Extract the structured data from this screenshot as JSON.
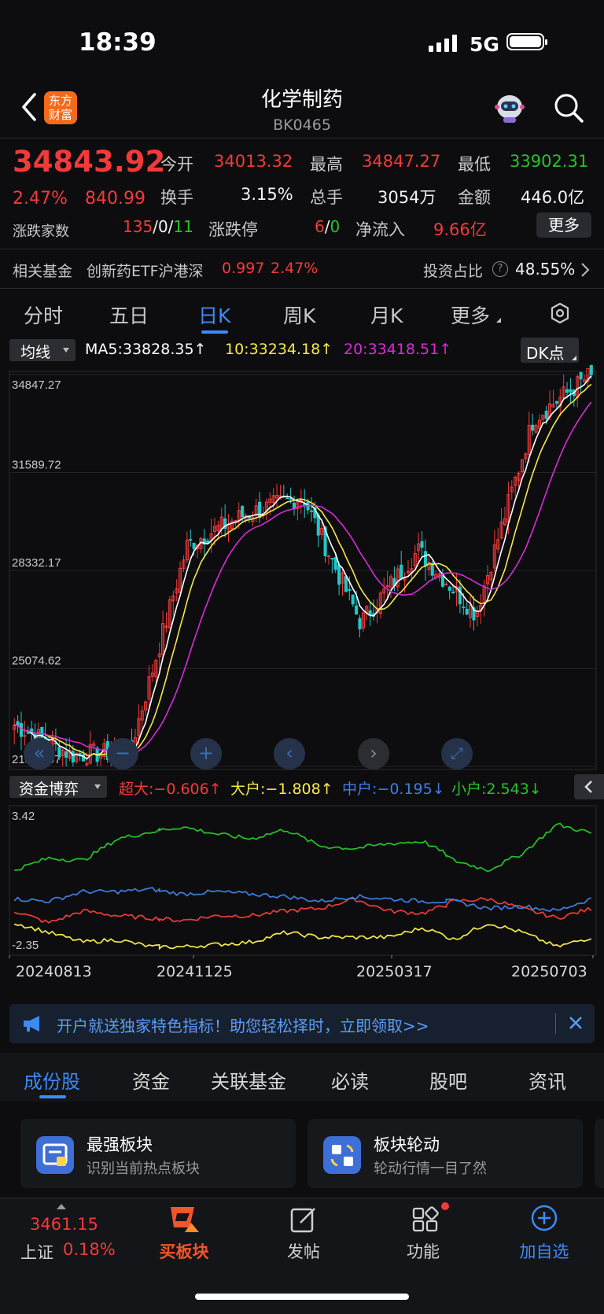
{
  "status_bar": {
    "time": "18:39",
    "network": "5G"
  },
  "header": {
    "title": "化学制药",
    "code": "BK0465",
    "logo_line1": "东方",
    "logo_line2": "财富"
  },
  "quote": {
    "price": "34843.92",
    "change_pct": "2.47%",
    "change_abs": "840.99",
    "open_label": "今开",
    "open": "34013.32",
    "high_label": "最高",
    "high": "34847.27",
    "low_label": "最低",
    "low": "33902.31",
    "turnover_label": "换手",
    "turnover": "3.15%",
    "volume_label": "总手",
    "volume": "3054万",
    "amount_label": "金额",
    "amount": "446.0亿",
    "breadth_label": "涨跌家数",
    "breadth_up": "135",
    "breadth_flat": "0",
    "breadth_down": "11",
    "limit_label": "涨跌停",
    "limit_up": "6",
    "limit_down": "0",
    "netflow_label": "净流入",
    "netflow": "9.66亿",
    "more_button": "更多"
  },
  "fund_row": {
    "label": "相关基金",
    "fund_name": "创新药ETF沪港深",
    "fund_price": "0.997",
    "fund_change": "2.47%",
    "ratio_label": "投资占比",
    "ratio": "48.55%"
  },
  "tabs": [
    {
      "label": "分时"
    },
    {
      "label": "五日"
    },
    {
      "label": "日K"
    },
    {
      "label": "周K"
    },
    {
      "label": "月K"
    },
    {
      "label": "更多"
    }
  ],
  "indicator_bar": {
    "selector": "均线",
    "ma5": "MA5:33828.35↑",
    "ma10": "10:33234.18↑",
    "ma20": "20:33418.51↑",
    "dk_button": "DK点"
  },
  "capital_bar": {
    "selector": "资金博弈",
    "super": "超大:−0.606↑",
    "large": "大户:−1.808↑",
    "medium": "中户:−0.195↓",
    "small": "小户:2.543↓"
  },
  "colors": {
    "up": "#f23a3a",
    "down": "#1ec9c8",
    "ma5": "#ffffff",
    "ma10": "#f5e94a",
    "ma20": "#d62cd6",
    "super": "#f23a3a",
    "large": "#f5e94a",
    "medium": "#3d7fe0",
    "small": "#26c22a",
    "accent": "#3d8af7"
  },
  "chart_data": [
    {
      "type": "candlestick",
      "title": "",
      "y_ticks": [
        "34847.27",
        "31589.72",
        "28332.17",
        "25074.62",
        "21817.07"
      ],
      "ylim": [
        21817.07,
        34847.27
      ],
      "x_ticks": [
        "20240813",
        "20241125",
        "20250317",
        "20250703"
      ],
      "series": [
        {
          "name": "MA5",
          "last": 33828.35
        },
        {
          "name": "10",
          "last": 33234.18
        },
        {
          "name": "20",
          "last": 33418.51
        }
      ],
      "key_points": [
        {
          "x": "20240813",
          "close": 23200
        },
        {
          "x": "start",
          "close": 22200
        },
        {
          "x": "low",
          "close": 22300
        },
        {
          "x": "20241008",
          "close": 29200
        },
        {
          "x": "20241125",
          "close": 30200
        },
        {
          "x": "peak1",
          "close": 30800
        },
        {
          "x": "trough",
          "close": 26600
        },
        {
          "x": "20250317",
          "close": 29000
        },
        {
          "x": "dip",
          "close": 26900
        },
        {
          "x": "20250703",
          "close": 33400
        },
        {
          "x": "last",
          "close": 34843.92
        }
      ]
    },
    {
      "type": "line",
      "title": "",
      "y_ticks": [
        "3.42",
        "-2.35"
      ],
      "ylim": [
        -2.35,
        3.42
      ],
      "x_ticks": [
        "20240813",
        "20241125",
        "20250317",
        "20250703"
      ],
      "series": [
        {
          "name": "超大",
          "last": -0.606
        },
        {
          "name": "大户",
          "last": -1.808
        },
        {
          "name": "中户",
          "last": -0.195
        },
        {
          "name": "小户",
          "last": 2.543
        }
      ]
    }
  ],
  "promo": {
    "text": "开户就送独家特色指标！助您轻松择时，立即领取>>"
  },
  "bottom_tabs": [
    {
      "label": "成份股"
    },
    {
      "label": "资金"
    },
    {
      "label": "关联基金"
    },
    {
      "label": "必读"
    },
    {
      "label": "股吧"
    },
    {
      "label": "资讯"
    }
  ],
  "cards": [
    {
      "title": "最强板块",
      "subtitle": "识别当前热点板块"
    },
    {
      "title": "板块轮动",
      "subtitle": "轮动行情一目了然"
    }
  ],
  "dock": {
    "index_value": "3461.15",
    "index_name": "上证",
    "index_change": "0.18%",
    "buy_label": "买板块",
    "post_label": "发帖",
    "func_label": "功能",
    "add_label": "加自选"
  }
}
